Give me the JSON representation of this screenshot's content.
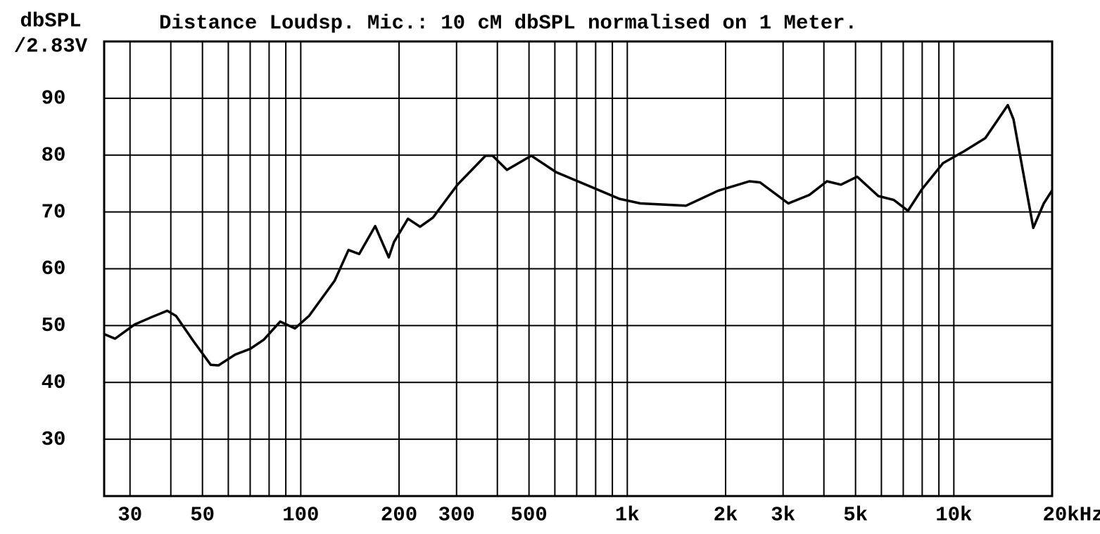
{
  "chart_data": {
    "type": "line",
    "title": "Distance Loudsp. Mic.: 10 cM dbSPL normalised on 1 Meter.",
    "y_label": [
      "dbSPL",
      "/2.83V"
    ],
    "log_x": true,
    "grid": true,
    "xlim": [
      25,
      20000
    ],
    "ylim": [
      20,
      100
    ],
    "yticks": [
      30,
      40,
      50,
      60,
      70,
      80,
      90
    ],
    "xticks": [
      30,
      50,
      100,
      200,
      300,
      500,
      {
        "value": 1000,
        "label": "1k"
      },
      {
        "value": 2000,
        "label": "2k"
      },
      {
        "value": 3000,
        "label": "3k"
      },
      {
        "value": 5000,
        "label": "5k"
      },
      {
        "value": 10000,
        "label": "10k"
      },
      {
        "value": 20000,
        "label": "20kHz"
      }
    ],
    "xgrid": [
      30,
      40,
      50,
      60,
      70,
      80,
      90,
      100,
      200,
      300,
      400,
      500,
      600,
      700,
      800,
      900,
      1000,
      2000,
      3000,
      4000,
      5000,
      6000,
      7000,
      8000,
      9000,
      10000
    ],
    "series": [
      {
        "color": "#000000",
        "x": [
          25,
          27,
          31,
          35,
          39,
          41.5,
          47,
          53,
          56,
          63,
          70,
          77,
          86.5,
          96,
          106,
          127,
          140,
          151,
          169,
          186,
          193,
          213,
          232,
          254,
          302,
          368,
          387,
          428,
          508,
          605,
          775,
          946,
          1097,
          1514,
          1892,
          2366,
          2551,
          3112,
          3612,
          4086,
          4510,
          5058,
          5871,
          6551,
          7234,
          7987,
          9267,
          10760,
          12490,
          14630,
          15230,
          17510,
          18850,
          20000
        ],
        "values": [
          48.5,
          47.7,
          50.2,
          51.5,
          52.6,
          51.7,
          47.2,
          43.1,
          43,
          44.9,
          45.9,
          47.5,
          50.7,
          49.5,
          51.7,
          57.9,
          63.3,
          62.6,
          67.5,
          62,
          64.7,
          68.8,
          67.4,
          69,
          74.8,
          79.9,
          79.9,
          77.4,
          79.9,
          77,
          74.4,
          72.3,
          71.5,
          71.1,
          73.7,
          75.4,
          75.2,
          71.5,
          73,
          75.4,
          74.8,
          76.2,
          72.8,
          72.1,
          70.2,
          74,
          78.6,
          80.7,
          83,
          88.8,
          86.3,
          67.2,
          71.5,
          73.8
        ]
      }
    ]
  }
}
